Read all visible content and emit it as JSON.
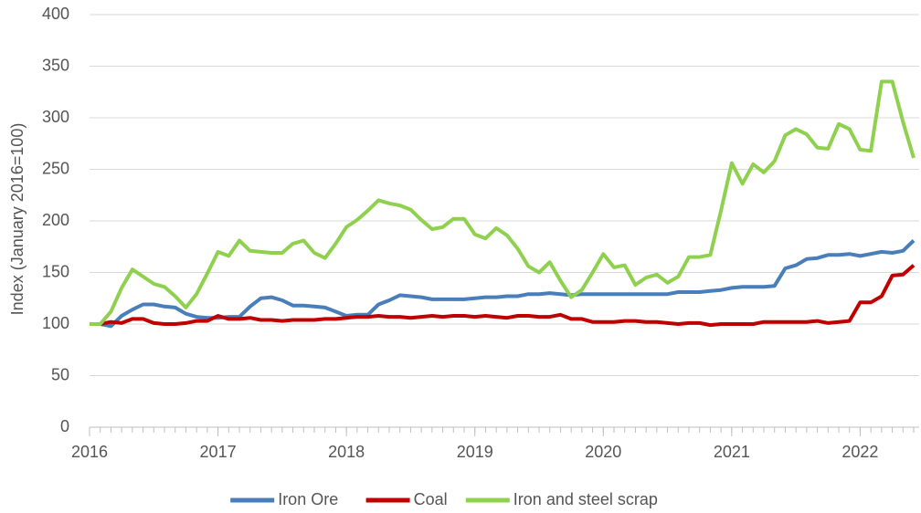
{
  "chart_data": {
    "type": "line",
    "y_label": "Index (January 2016=100)",
    "x": [
      2016,
      2016.0833,
      2016.1667,
      2016.25,
      2016.3333,
      2016.4167,
      2016.5,
      2016.5833,
      2016.6667,
      2016.75,
      2016.8333,
      2016.9167,
      2017,
      2017.0833,
      2017.1667,
      2017.25,
      2017.3333,
      2017.4167,
      2017.5,
      2017.5833,
      2017.6667,
      2017.75,
      2017.8333,
      2017.9167,
      2018,
      2018.0833,
      2018.1667,
      2018.25,
      2018.3333,
      2018.4167,
      2018.5,
      2018.5833,
      2018.6667,
      2018.75,
      2018.8333,
      2018.9167,
      2019,
      2019.0833,
      2019.1667,
      2019.25,
      2019.3333,
      2019.4167,
      2019.5,
      2019.5833,
      2019.6667,
      2019.75,
      2019.8333,
      2019.9167,
      2020,
      2020.0833,
      2020.1667,
      2020.25,
      2020.3333,
      2020.4167,
      2020.5,
      2020.5833,
      2020.6667,
      2020.75,
      2020.8333,
      2020.9167,
      2021,
      2021.0833,
      2021.1667,
      2021.25,
      2021.3333,
      2021.4167,
      2021.5,
      2021.5833,
      2021.6667,
      2021.75,
      2021.8333,
      2021.9167,
      2022,
      2022.0833,
      2022.1667,
      2022.25,
      2022.3333,
      2022.4167
    ],
    "series": [
      {
        "name": "Iron Ore",
        "color": "#4a7ebb",
        "values": [
          100,
          100,
          98,
          108,
          114,
          119,
          119,
          117,
          116,
          110,
          107,
          106,
          106,
          107,
          107,
          117,
          125,
          126,
          123,
          118,
          118,
          117,
          116,
          112,
          108,
          109,
          109,
          119,
          123,
          128,
          127,
          126,
          124,
          124,
          124,
          124,
          125,
          126,
          126,
          127,
          127,
          129,
          129,
          130,
          129,
          128,
          129,
          129,
          129,
          129,
          129,
          129,
          129,
          129,
          129,
          131,
          131,
          131,
          132,
          133,
          135,
          136,
          136,
          136,
          137,
          154,
          157,
          163,
          164,
          167,
          167,
          168,
          166,
          168,
          170,
          169,
          171,
          181
        ]
      },
      {
        "name": "Coal",
        "color": "#c00000",
        "values": [
          100,
          100,
          102,
          101,
          105,
          105,
          101,
          100,
          100,
          101,
          103,
          103,
          108,
          105,
          105,
          106,
          104,
          104,
          103,
          104,
          104,
          104,
          105,
          105,
          106,
          107,
          107,
          108,
          107,
          107,
          106,
          107,
          108,
          107,
          108,
          108,
          107,
          108,
          107,
          106,
          108,
          108,
          107,
          107,
          109,
          105,
          105,
          102,
          102,
          102,
          103,
          103,
          102,
          102,
          101,
          100,
          101,
          101,
          99,
          100,
          100,
          100,
          100,
          102,
          102,
          102,
          102,
          102,
          103,
          101,
          102,
          103,
          121,
          121,
          127,
          147,
          148,
          157
        ]
      },
      {
        "name": "Iron and steel scrap",
        "color": "#8fd14f",
        "values": [
          100,
          100,
          112,
          135,
          153,
          146,
          139,
          136,
          127,
          116,
          129,
          149,
          170,
          166,
          181,
          171,
          170,
          169,
          169,
          178,
          181,
          169,
          164,
          178,
          194,
          201,
          210,
          220,
          217,
          215,
          211,
          201,
          192,
          194,
          202,
          202,
          187,
          183,
          193,
          186,
          173,
          156,
          150,
          160,
          142,
          126,
          133,
          150,
          168,
          155,
          157,
          138,
          145,
          148,
          140,
          146,
          165,
          165,
          167,
          210,
          256,
          236,
          255,
          247,
          258,
          283,
          289,
          284,
          271,
          270,
          294,
          289,
          269,
          268,
          335,
          335,
          296,
          261
        ]
      }
    ],
    "xlim": [
      2016,
      2022.4167
    ],
    "xticks": [
      2016,
      2017,
      2018,
      2019,
      2020,
      2021,
      2022
    ],
    "ylim": [
      0,
      400
    ],
    "yticks": [
      0,
      50,
      100,
      150,
      200,
      250,
      300,
      350,
      400
    ],
    "grid": true,
    "legend": "bottom"
  }
}
